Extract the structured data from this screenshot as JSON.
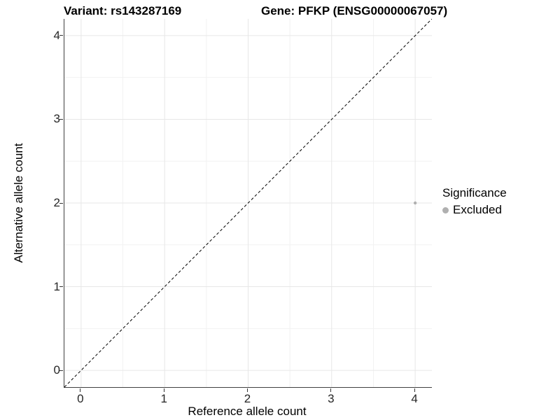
{
  "titles": {
    "variant": "Variant: rs143287169",
    "gene": "Gene: PFKP (ENSG00000067057)"
  },
  "axes": {
    "x_label": "Reference allele count",
    "y_label": "Alternative allele count"
  },
  "legend": {
    "title": "Significance",
    "items": [
      {
        "label": "Excluded",
        "color": "#b0b0b0"
      }
    ]
  },
  "chart_data": {
    "type": "scatter",
    "title_left": "Variant: rs143287169",
    "title_right": "Gene: PFKP (ENSG00000067057)",
    "xlabel": "Reference allele count",
    "ylabel": "Alternative allele count",
    "xlim": [
      -0.2,
      4.2
    ],
    "ylim": [
      -0.2,
      4.2
    ],
    "x_ticks": [
      0,
      1,
      2,
      3,
      4
    ],
    "y_ticks": [
      0,
      1,
      2,
      3,
      4
    ],
    "x_minor": [
      0.5,
      1.5,
      2.5,
      3.5
    ],
    "y_minor": [
      0.5,
      1.5,
      2.5,
      3.5
    ],
    "grid": "on",
    "series": [
      {
        "name": "Excluded",
        "color": "#b0b0b0",
        "points": [
          {
            "x": 4,
            "y": 2
          }
        ]
      }
    ],
    "reference_line": {
      "kind": "abline",
      "slope": 1,
      "intercept": 0,
      "style": "dashed",
      "color": "#000000"
    },
    "legend_position": "right",
    "colors": {
      "grid_major": "#e7e7e7",
      "grid_minor": "#f2f2f2",
      "axis_line": "#404040",
      "point": "#b0b0b0"
    }
  }
}
